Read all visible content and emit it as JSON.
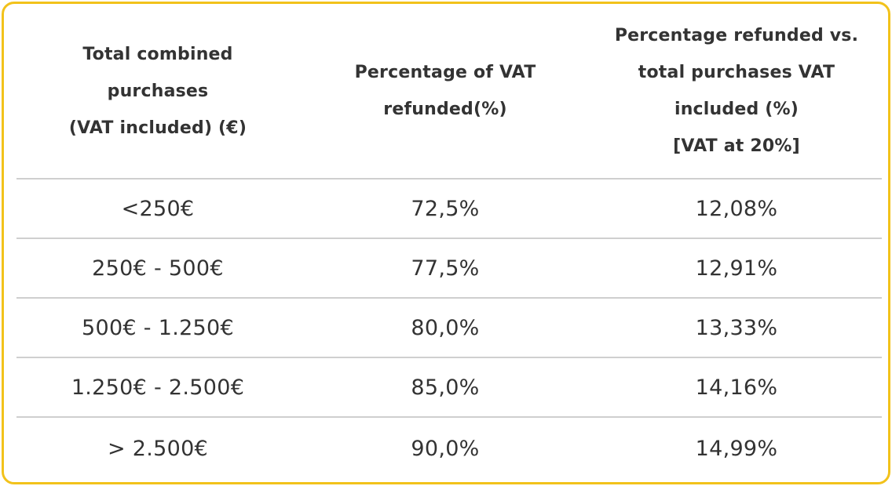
{
  "table": {
    "headers": [
      {
        "lines": [
          "Total combined",
          "purchases",
          "(VAT included) (€)"
        ]
      },
      {
        "lines": [
          "Percentage of VAT",
          "refunded(%)"
        ]
      },
      {
        "lines": [
          "Percentage refunded vs.",
          "total purchases VAT",
          "included (%)",
          "[VAT at 20%]"
        ]
      }
    ],
    "rows": [
      {
        "range": "<250€",
        "vat_refunded": "72,5%",
        "refunded_vs_total": "12,08%"
      },
      {
        "range": "250€ - 500€",
        "vat_refunded": "77,5%",
        "refunded_vs_total": "12,91%"
      },
      {
        "range": "500€ - 1.250€",
        "vat_refunded": "80,0%",
        "refunded_vs_total": "13,33%"
      },
      {
        "range": "1.250€ - 2.500€",
        "vat_refunded": "85,0%",
        "refunded_vs_total": "14,16%"
      },
      {
        "range": "> 2.500€",
        "vat_refunded": "90,0%",
        "refunded_vs_total": "14,99%"
      }
    ],
    "colors": {
      "border": "#f2c21b",
      "divider": "#cfcfcf",
      "text": "#333333"
    }
  }
}
